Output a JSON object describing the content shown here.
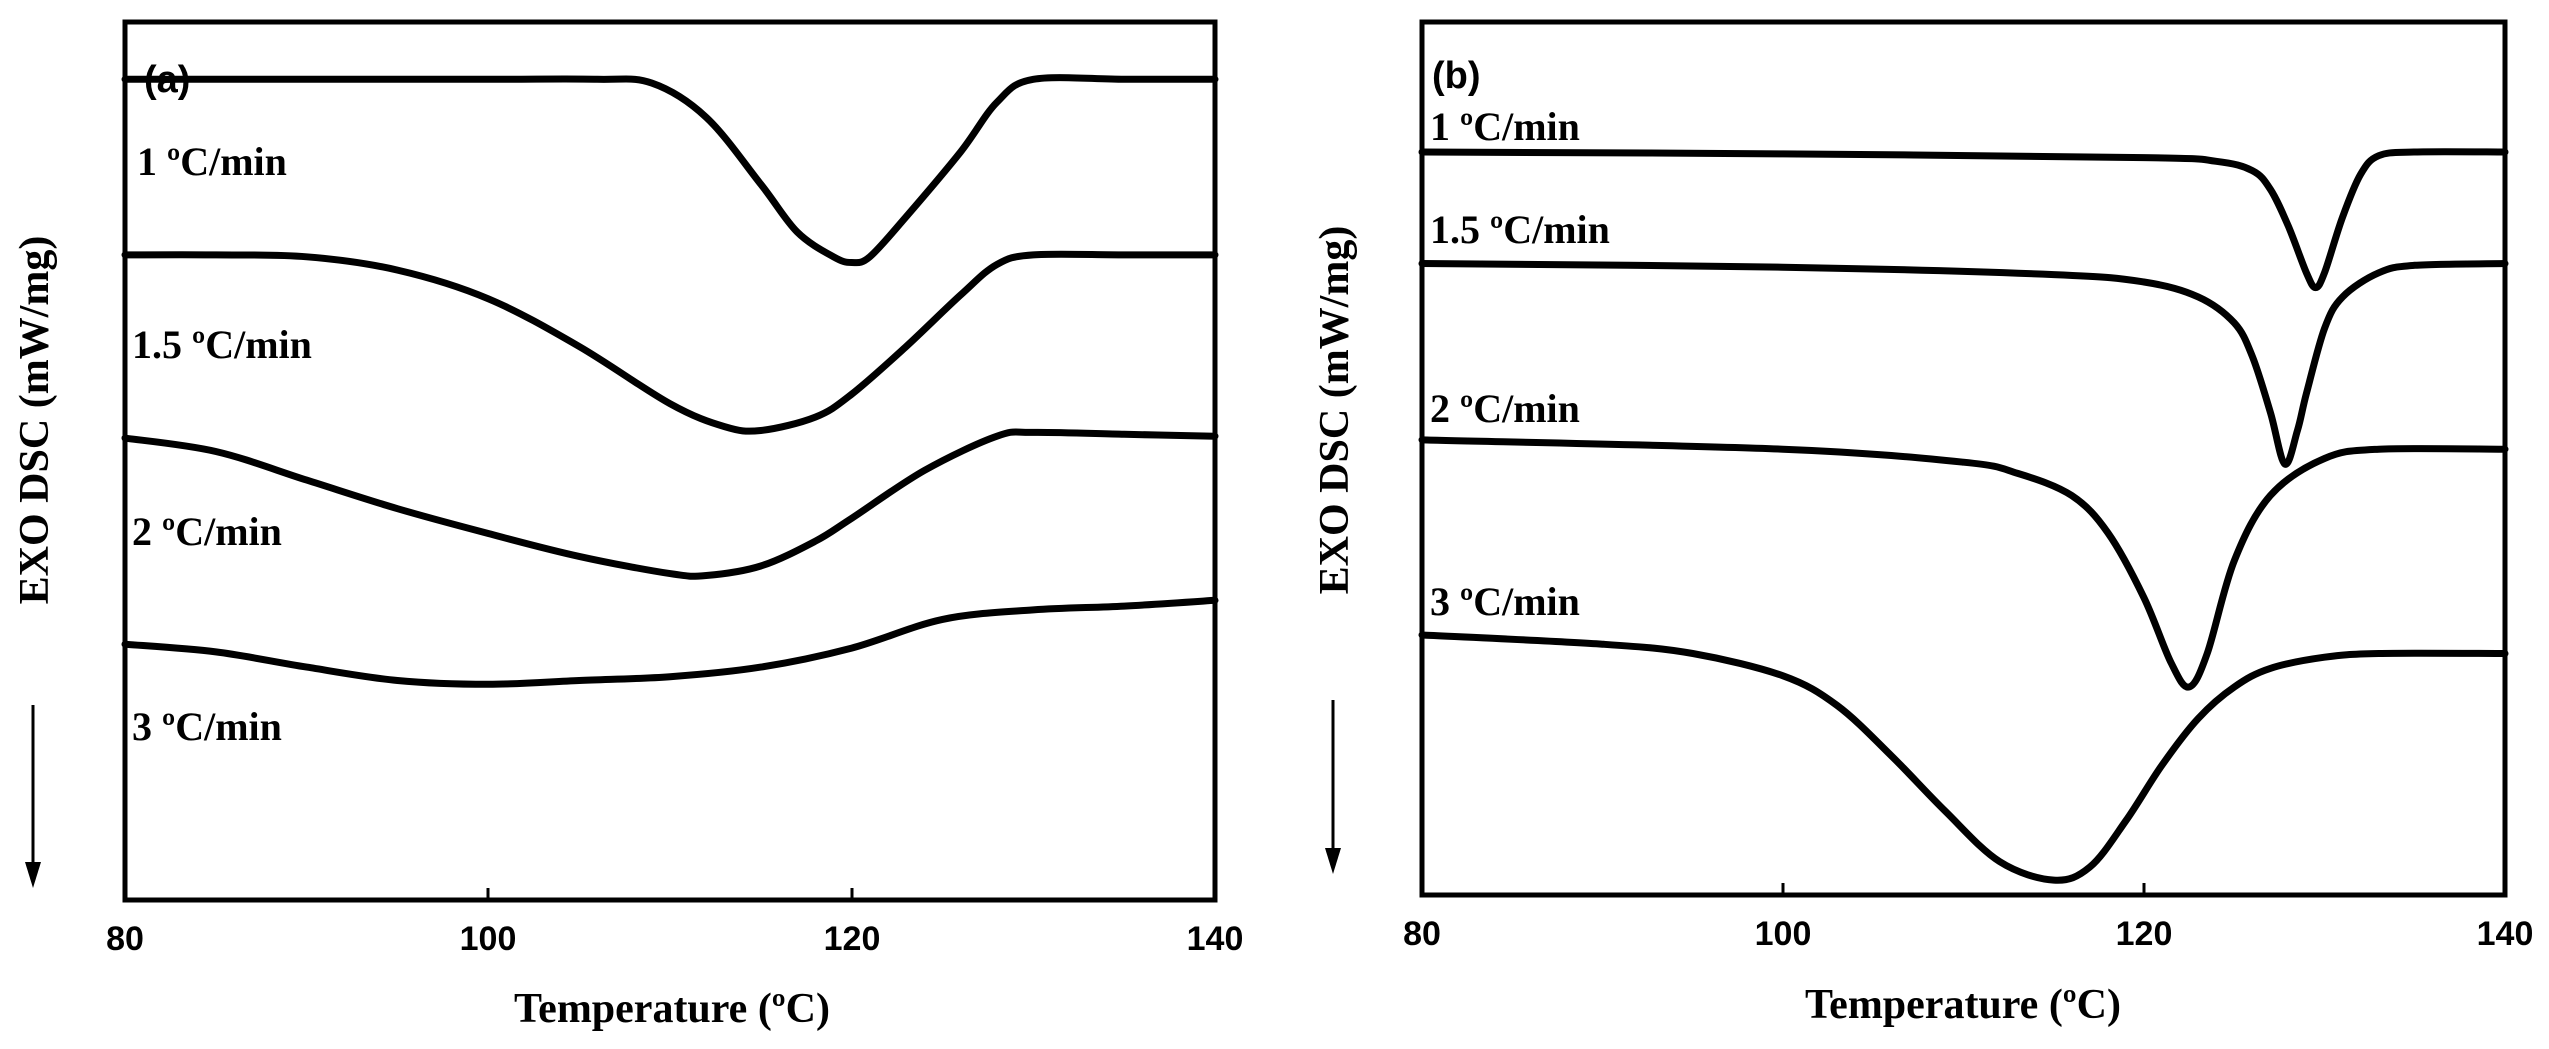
{
  "chart_data": [
    {
      "type": "line",
      "panel_label": "(a)",
      "xlabel": "Temperature (ºC)",
      "ylabel": "EXO  DSC (mW/mg)",
      "xlim": [
        80,
        140
      ],
      "ylim": [
        -4.3,
        0.3
      ],
      "xticks": [
        80,
        100,
        120,
        140
      ],
      "series": [
        {
          "name": "1 ºC/min",
          "x": [
            80,
            90,
            100,
            106,
            109,
            112,
            115,
            117,
            119,
            120,
            121,
            123,
            126,
            128,
            130,
            135,
            140
          ],
          "y": [
            0,
            0,
            0,
            0,
            -0.02,
            -0.2,
            -0.55,
            -0.8,
            -0.93,
            -0.96,
            -0.93,
            -0.72,
            -0.38,
            -0.12,
            0,
            0,
            0
          ]
        },
        {
          "name": "1.5 ºC/min",
          "x": [
            80,
            85,
            90,
            95,
            100,
            105,
            110,
            113,
            115,
            118,
            120,
            123,
            126,
            128,
            130,
            135,
            140
          ],
          "y": [
            -0.92,
            -0.92,
            -0.93,
            -1.0,
            -1.15,
            -1.4,
            -1.7,
            -1.82,
            -1.84,
            -1.77,
            -1.65,
            -1.4,
            -1.13,
            -0.97,
            -0.92,
            -0.92,
            -0.92
          ]
        },
        {
          "name": "2 ºC/min",
          "x": [
            80,
            85,
            90,
            95,
            100,
            105,
            110,
            112,
            115,
            118,
            120,
            124,
            128,
            130,
            135,
            140
          ],
          "y": [
            -1.88,
            -1.95,
            -2.1,
            -2.25,
            -2.38,
            -2.5,
            -2.59,
            -2.6,
            -2.55,
            -2.42,
            -2.3,
            -2.05,
            -1.87,
            -1.85,
            -1.86,
            -1.87
          ]
        },
        {
          "name": "3 ºC/min",
          "x": [
            80,
            85,
            90,
            95,
            100,
            105,
            110,
            115,
            120,
            125,
            130,
            135,
            140
          ],
          "y": [
            -2.96,
            -3.0,
            -3.08,
            -3.15,
            -3.17,
            -3.15,
            -3.13,
            -3.08,
            -2.98,
            -2.83,
            -2.78,
            -2.76,
            -2.73
          ]
        }
      ]
    },
    {
      "type": "line",
      "panel_label": "(b)",
      "xlabel": "Temperature (ºC)",
      "ylabel": "EXO  DSC (mW/mg)",
      "xlim": [
        80,
        140
      ],
      "ylim": [
        -4.0,
        0.7
      ],
      "xticks": [
        80,
        100,
        120,
        140
      ],
      "series": [
        {
          "name": "1 ºC/min",
          "x": [
            80,
            100,
            120,
            124,
            126,
            127,
            128,
            129,
            129.5,
            130,
            131,
            132,
            133,
            135,
            140
          ],
          "y": [
            0,
            -0.01,
            -0.03,
            -0.05,
            -0.1,
            -0.2,
            -0.4,
            -0.65,
            -0.73,
            -0.65,
            -0.35,
            -0.12,
            -0.02,
            0,
            0
          ]
        },
        {
          "name": "1.5 ºC/min",
          "x": [
            80,
            100,
            115,
            120,
            123,
            125,
            126,
            127,
            127.8,
            128.5,
            129,
            130,
            131,
            133,
            135,
            140
          ],
          "y": [
            -0.6,
            -0.62,
            -0.66,
            -0.7,
            -0.78,
            -0.92,
            -1.1,
            -1.4,
            -1.68,
            -1.5,
            -1.3,
            -0.95,
            -0.78,
            -0.65,
            -0.61,
            -0.6
          ]
        },
        {
          "name": "2 ºC/min",
          "x": [
            80,
            100,
            110,
            113,
            116,
            118,
            120,
            121.5,
            122.5,
            123.5,
            125,
            127,
            130,
            133,
            140
          ],
          "y": [
            -1.55,
            -1.6,
            -1.67,
            -1.73,
            -1.85,
            -2.05,
            -2.4,
            -2.75,
            -2.88,
            -2.7,
            -2.2,
            -1.85,
            -1.65,
            -1.6,
            -1.6
          ]
        },
        {
          "name": "3 ºC/min",
          "x": [
            80,
            90,
            95,
            100,
            103,
            106,
            109,
            112,
            115,
            117,
            119,
            121,
            123,
            125,
            127,
            130,
            133,
            140
          ],
          "y": [
            -2.6,
            -2.65,
            -2.7,
            -2.82,
            -2.98,
            -3.25,
            -3.55,
            -3.82,
            -3.92,
            -3.85,
            -3.6,
            -3.3,
            -3.05,
            -2.88,
            -2.78,
            -2.72,
            -2.7,
            -2.7
          ]
        }
      ]
    }
  ]
}
